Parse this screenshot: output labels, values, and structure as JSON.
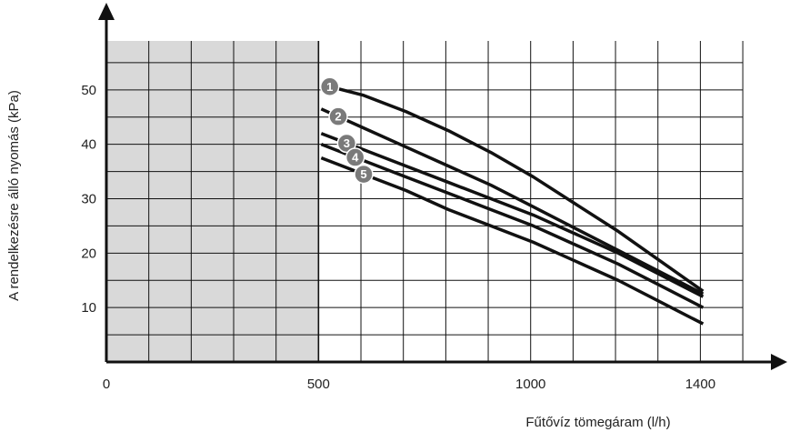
{
  "chart_data": {
    "type": "line",
    "xlabel": "Fűtővíz tömegáram (l/h)",
    "ylabel": "A rendelkezésre álló nyomás (kPa)",
    "xlim": [
      0,
      1500
    ],
    "ylim": [
      0,
      59
    ],
    "x_ticks": [
      "0",
      "500",
      "1000",
      "1400"
    ],
    "y_ticks": [
      "10",
      "20",
      "30",
      "40",
      "50"
    ],
    "grid": true,
    "shaded_region": {
      "x_from": 0,
      "x_to": 500,
      "color": "#d9d9d9"
    },
    "series": [
      {
        "marker": "1",
        "x": [
          500,
          600,
          700,
          800,
          900,
          1000,
          1100,
          1200,
          1300,
          1400
        ],
        "y": [
          51,
          49,
          46,
          42.5,
          38.5,
          34,
          29,
          24,
          18.5,
          13
        ]
      },
      {
        "marker": "2",
        "x": [
          500,
          600,
          700,
          800,
          900,
          1000,
          1100,
          1200,
          1300,
          1400
        ],
        "y": [
          46.5,
          43,
          39.5,
          36,
          32.5,
          28.5,
          24.5,
          20.5,
          16.5,
          12.5
        ]
      },
      {
        "marker": "3",
        "x": [
          500,
          600,
          700,
          800,
          900,
          1000,
          1100,
          1200,
          1300,
          1400
        ],
        "y": [
          42,
          39,
          36,
          33,
          30,
          27,
          23.5,
          20,
          16,
          12
        ]
      },
      {
        "marker": "4",
        "x": [
          500,
          600,
          700,
          800,
          900,
          1000,
          1100,
          1200,
          1300,
          1400
        ],
        "y": [
          40,
          37,
          34,
          31,
          28,
          25,
          21.5,
          18,
          14,
          10
        ]
      },
      {
        "marker": "5",
        "x": [
          500,
          600,
          700,
          800,
          900,
          1000,
          1100,
          1200,
          1300,
          1400
        ],
        "y": [
          37.5,
          34.5,
          31.5,
          28,
          25,
          22,
          18.5,
          15,
          11,
          7
        ]
      }
    ],
    "colors": {
      "line": "#111111",
      "marker": "#7a7a7a",
      "grid": "#111111",
      "shade": "#d9d9d9"
    }
  }
}
